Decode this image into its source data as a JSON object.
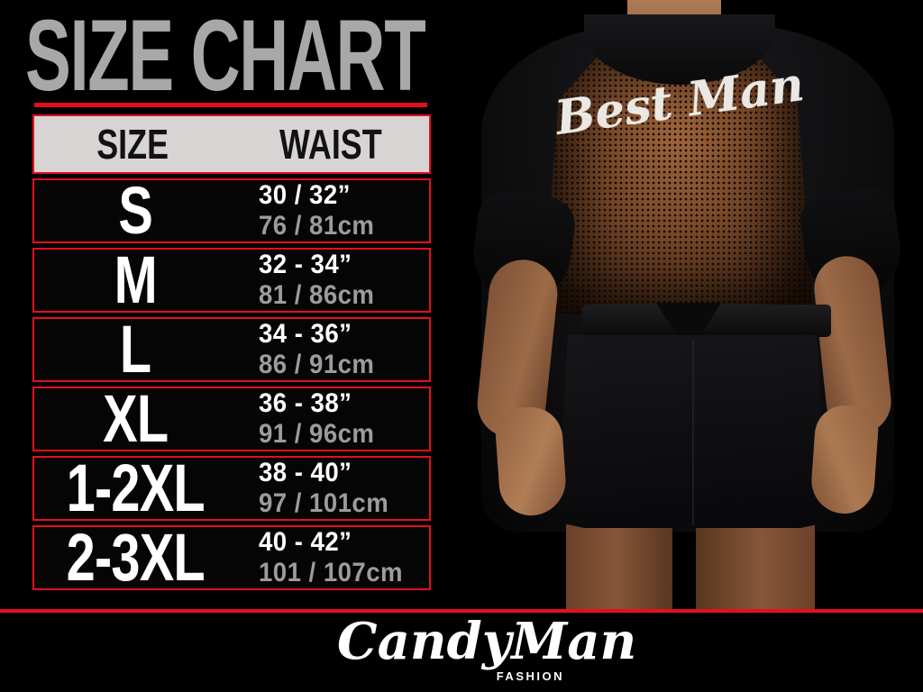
{
  "colors": {
    "background": "#000000",
    "accent_red": "#e3101c",
    "title_gray": "#a8a8ab",
    "header_bg": "#d8d4d4",
    "cm_text_gray": "#9c9c9e"
  },
  "title": {
    "text": "SIZE CHART"
  },
  "table": {
    "headers": {
      "size": "SIZE",
      "waist": "WAIST"
    },
    "rows": [
      {
        "size": "S",
        "waist_in": "30 / 32”",
        "waist_cm": "76 / 81cm"
      },
      {
        "size": "M",
        "waist_in": "32 - 34”",
        "waist_cm": "81 / 86cm"
      },
      {
        "size": "L",
        "waist_in": "34 - 36”",
        "waist_cm": "86 / 91cm"
      },
      {
        "size": "XL",
        "waist_in": "36 - 38”",
        "waist_cm": "91 / 96cm"
      },
      {
        "size": "1-2XL",
        "waist_in": "38 - 40”",
        "waist_cm": "97 / 101cm"
      },
      {
        "size": "2-3XL",
        "waist_in": "40 - 42”",
        "waist_cm": "101 / 107cm"
      }
    ]
  },
  "photo": {
    "garment_text": "Best Man"
  },
  "logo": {
    "brand": "CandyMan",
    "sub": "FASHION"
  }
}
